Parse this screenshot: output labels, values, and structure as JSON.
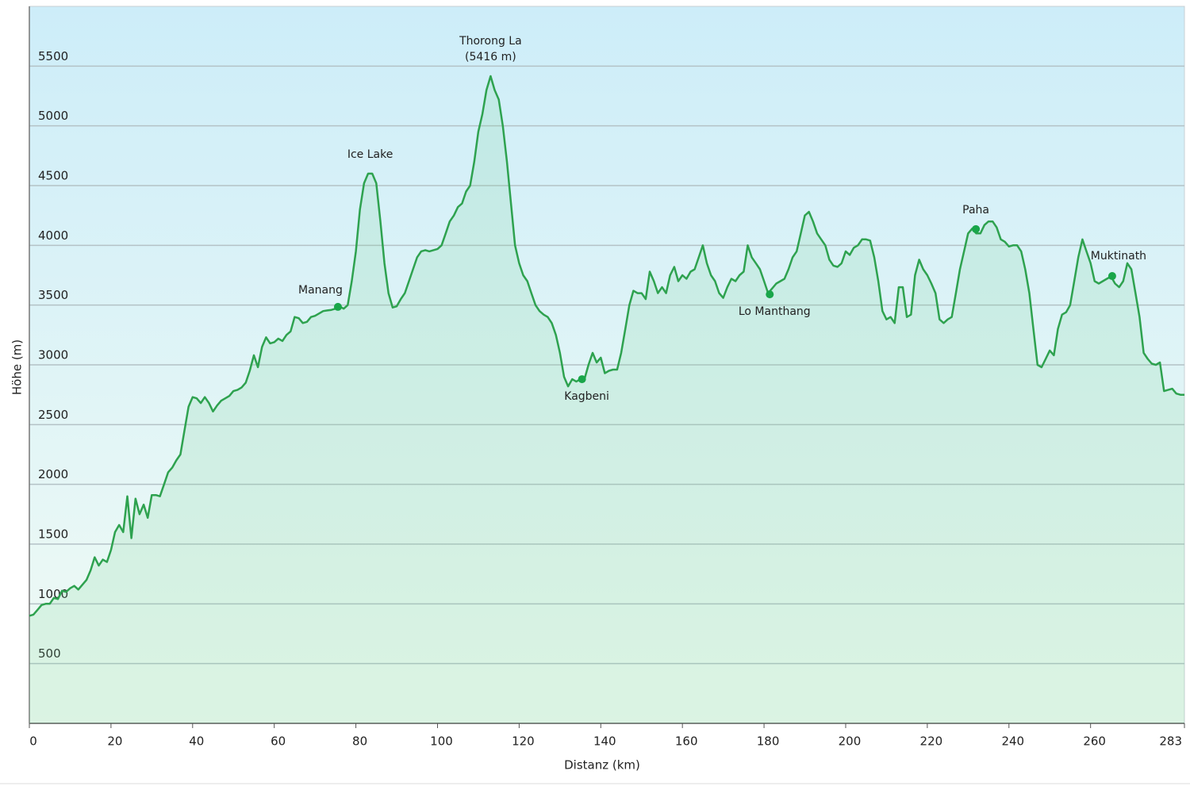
{
  "chart_data": {
    "type": "area",
    "x_label": "Distanz (km)",
    "y_label": "Höhe (m)",
    "x": [
      0,
      1,
      2,
      3,
      4,
      5,
      6,
      7,
      8,
      9,
      10,
      11,
      12,
      13,
      14,
      15,
      16,
      17,
      18,
      19,
      20,
      21,
      22,
      23,
      24,
      25,
      26,
      27,
      28,
      29,
      30,
      31,
      32,
      33,
      34,
      35,
      36,
      37,
      38,
      39,
      40,
      41,
      42,
      43,
      44,
      45,
      46,
      47,
      48,
      49,
      50,
      51,
      52,
      53,
      54,
      55,
      56,
      57,
      58,
      59,
      60,
      61,
      62,
      63,
      64,
      65,
      66,
      67,
      68,
      69,
      70,
      71,
      72,
      73,
      74,
      75,
      76,
      77,
      78,
      79,
      80,
      81,
      82,
      83,
      84,
      85,
      86,
      87,
      88,
      89,
      90,
      91,
      92,
      93,
      94,
      95,
      96,
      97,
      98,
      99,
      100,
      101,
      102,
      103,
      104,
      105,
      106,
      107,
      108,
      109,
      110,
      111,
      112,
      113,
      114,
      115,
      116,
      117,
      118,
      119,
      120,
      121,
      122,
      123,
      124,
      125,
      126,
      127,
      128,
      129,
      130,
      131,
      132,
      133,
      134,
      135,
      136,
      137,
      138,
      139,
      140,
      141,
      142,
      143,
      144,
      145,
      146,
      147,
      148,
      149,
      150,
      151,
      152,
      153,
      154,
      155,
      156,
      157,
      158,
      159,
      160,
      161,
      162,
      163,
      164,
      165,
      166,
      167,
      168,
      169,
      170,
      171,
      172,
      173,
      174,
      175,
      176,
      177,
      178,
      179,
      180,
      181,
      182,
      183,
      184,
      185,
      186,
      187,
      188,
      189,
      190,
      191,
      192,
      193,
      194,
      195,
      196,
      197,
      198,
      199,
      200,
      201,
      202,
      203,
      204,
      205,
      206,
      207,
      208,
      209,
      210,
      211,
      212,
      213,
      214,
      215,
      216,
      217,
      218,
      219,
      220,
      221,
      222,
      223,
      224,
      225,
      226,
      227,
      228,
      229,
      230,
      231,
      232,
      233,
      234,
      235,
      236,
      237,
      238,
      239,
      240,
      241,
      242,
      243,
      244,
      245,
      246,
      247,
      248,
      249,
      250,
      251,
      252,
      253,
      254,
      255,
      256,
      257,
      258,
      259,
      260,
      261,
      262,
      263,
      264,
      265,
      266,
      267,
      268,
      269,
      270,
      271,
      272,
      273,
      274,
      275,
      276,
      277,
      278,
      279,
      280,
      281,
      282,
      283
    ],
    "values": [
      900,
      910,
      950,
      990,
      1000,
      1000,
      1050,
      1040,
      1110,
      1100,
      1130,
      1150,
      1120,
      1160,
      1200,
      1280,
      1390,
      1320,
      1370,
      1350,
      1450,
      1600,
      1660,
      1600,
      1900,
      1550,
      1880,
      1750,
      1830,
      1720,
      1910,
      1910,
      1900,
      2000,
      2100,
      2140,
      2200,
      2250,
      2450,
      2650,
      2730,
      2720,
      2680,
      2730,
      2680,
      2610,
      2660,
      2700,
      2720,
      2740,
      2780,
      2790,
      2810,
      2850,
      2950,
      3080,
      2980,
      3150,
      3230,
      3180,
      3190,
      3220,
      3200,
      3250,
      3280,
      3400,
      3390,
      3350,
      3360,
      3400,
      3410,
      3430,
      3450,
      3455,
      3460,
      3470,
      3490,
      3470,
      3500,
      3700,
      3950,
      4300,
      4520,
      4600,
      4600,
      4520,
      4200,
      3850,
      3600,
      3480,
      3490,
      3550,
      3600,
      3700,
      3800,
      3900,
      3950,
      3960,
      3950,
      3960,
      3970,
      4000,
      4100,
      4200,
      4250,
      4320,
      4350,
      4450,
      4500,
      4700,
      4950,
      5100,
      5300,
      5416,
      5300,
      5220,
      5000,
      4700,
      4350,
      4000,
      3850,
      3750,
      3700,
      3600,
      3500,
      3450,
      3420,
      3400,
      3350,
      3250,
      3100,
      2900,
      2820,
      2880,
      2860,
      2880,
      2880,
      3000,
      3100,
      3020,
      3060,
      2930,
      2950,
      2960,
      2960,
      3100,
      3300,
      3500,
      3620,
      3600,
      3600,
      3550,
      3780,
      3700,
      3600,
      3650,
      3600,
      3750,
      3820,
      3700,
      3750,
      3720,
      3780,
      3800,
      3900,
      4000,
      3850,
      3750,
      3700,
      3600,
      3560,
      3650,
      3720,
      3700,
      3750,
      3780,
      4000,
      3900,
      3850,
      3800,
      3700,
      3600,
      3640,
      3680,
      3700,
      3720,
      3800,
      3900,
      3950,
      4100,
      4250,
      4280,
      4200,
      4100,
      4050,
      4000,
      3880,
      3830,
      3820,
      3850,
      3950,
      3920,
      3980,
      4000,
      4050,
      4050,
      4040,
      3900,
      3700,
      3450,
      3380,
      3400,
      3350,
      3650,
      3650,
      3400,
      3420,
      3750,
      3880,
      3800,
      3750,
      3680,
      3600,
      3380,
      3350,
      3380,
      3400,
      3600,
      3800,
      3950,
      4100,
      4140,
      4100,
      4100,
      4170,
      4200,
      4200,
      4150,
      4050,
      4030,
      3990,
      4000,
      4000,
      3950,
      3800,
      3600,
      3300,
      3000,
      2980,
      3050,
      3120,
      3080,
      3300,
      3420,
      3440,
      3500,
      3700,
      3900,
      4050,
      3950,
      3850,
      3700,
      3680,
      3700,
      3720,
      3740,
      3680,
      3650,
      3700,
      3850,
      3800,
      3600,
      3400,
      3100,
      3050,
      3010,
      3000,
      3020,
      2780,
      2790,
      2800,
      2760,
      2750,
      2750
    ],
    "color": "#2ea24f",
    "xlim": [
      0,
      283
    ],
    "xticks": [
      0,
      20,
      40,
      60,
      80,
      100,
      120,
      140,
      160,
      180,
      200,
      220,
      240,
      260,
      283
    ],
    "ylim": [
      0,
      6000
    ],
    "yticks": [
      500,
      1000,
      1500,
      2000,
      2500,
      3000,
      3500,
      4000,
      4500,
      5000,
      5500
    ],
    "grid": true,
    "annotations": [
      {
        "lines": [
          "Manang"
        ],
        "x": 75.6,
        "y": 3485,
        "marker": true,
        "position": "above-left"
      },
      {
        "lines": [
          "Ice Lake"
        ],
        "x": 83.5,
        "y": 4600,
        "marker": false,
        "position": "above"
      },
      {
        "lines": [
          "Thorong La",
          "(5416 m)"
        ],
        "x": 113,
        "y": 5416,
        "marker": false,
        "position": "above"
      },
      {
        "lines": [
          "Kagbeni"
        ],
        "x": 135.4,
        "y": 2880,
        "marker": true,
        "position": "below"
      },
      {
        "lines": [
          "Lo Manthang"
        ],
        "x": 181.4,
        "y": 3590,
        "marker": true,
        "position": "below"
      },
      {
        "lines": [
          "Paha"
        ],
        "x": 231.9,
        "y": 4136,
        "marker": true,
        "position": "above"
      },
      {
        "lines": [
          "Muktinath"
        ],
        "x": 265.3,
        "y": 3743,
        "marker": true,
        "position": "above-right"
      }
    ]
  }
}
